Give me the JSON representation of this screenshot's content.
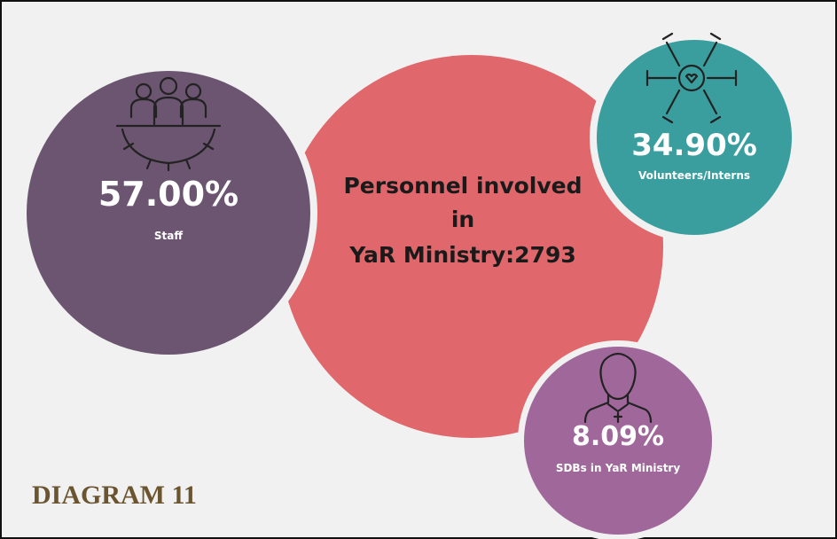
{
  "center": {
    "lines": [
      "Personnel involved",
      "in",
      "YaR Ministry:2793"
    ]
  },
  "nodes": [
    {
      "value": "57.00%",
      "label": "Staff"
    },
    {
      "value": "34.90%",
      "label": "Volunteers/Interns"
    },
    {
      "value": "8.09%",
      "label": "SDBs in YaR Ministry"
    }
  ],
  "caption": "DIAGRAM 11"
}
